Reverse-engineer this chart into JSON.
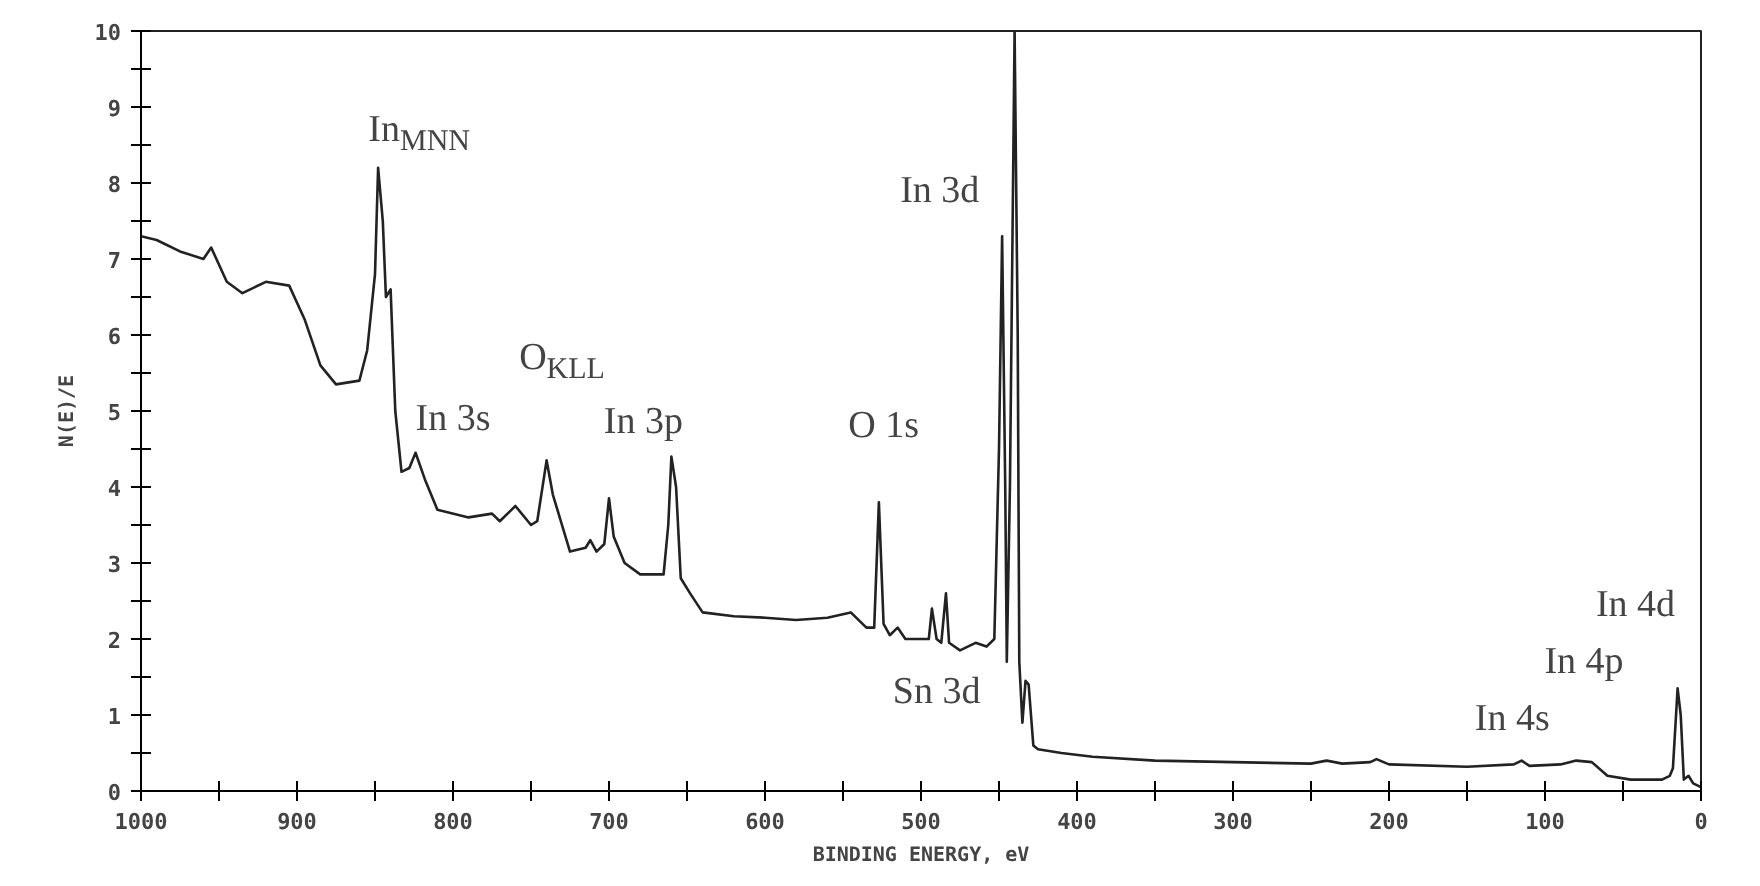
{
  "chart_data": {
    "type": "line",
    "xlabel": "BINDING ENERGY, eV",
    "ylabel": "N(E)/E",
    "xlim": [
      1000,
      0
    ],
    "ylim": [
      0,
      10
    ],
    "xticks": [
      1000,
      {
        "value": 950,
        "label": null
      },
      900,
      {
        "value": 850,
        "label": null
      },
      800,
      {
        "value": 750,
        "label": null
      },
      700,
      {
        "value": 650,
        "label": null
      },
      600,
      {
        "value": 550,
        "label": null
      },
      500,
      {
        "value": 450,
        "label": null
      },
      400,
      {
        "value": 350,
        "label": null
      },
      300,
      {
        "value": 250,
        "label": null
      },
      200,
      {
        "value": 150,
        "label": null
      },
      100,
      {
        "value": 50,
        "label": null
      },
      0
    ],
    "yticks": [
      0,
      {
        "value": 0.5,
        "label": null
      },
      1,
      {
        "value": 1.5,
        "label": null
      },
      2,
      {
        "value": 2.5,
        "label": null
      },
      3,
      {
        "value": 3.5,
        "label": null
      },
      4,
      {
        "value": 4.5,
        "label": null
      },
      5,
      {
        "value": 5.5,
        "label": null
      },
      6,
      {
        "value": 6.5,
        "label": null
      },
      7,
      {
        "value": 7.5,
        "label": null
      },
      8,
      {
        "value": 8.5,
        "label": null
      },
      9,
      {
        "value": 9.5,
        "label": null
      },
      10
    ],
    "grid": false,
    "marker": "none",
    "line_style": "solid",
    "series": [
      {
        "color": "#222222",
        "x": [
          1000,
          990,
          975,
          960,
          955,
          945,
          935,
          920,
          905,
          895,
          885,
          875,
          860,
          855,
          850,
          848,
          845,
          843,
          840,
          837,
          833,
          828,
          824,
          818,
          810,
          790,
          775,
          770,
          760,
          750,
          746,
          740,
          736,
          725,
          715,
          712,
          708,
          703,
          700,
          697,
          690,
          680,
          665,
          662,
          660,
          657,
          654,
          648,
          640,
          620,
          600,
          580,
          560,
          545,
          535,
          530,
          527,
          524,
          520,
          515,
          510,
          495,
          493,
          490,
          487,
          484,
          482,
          475,
          465,
          458,
          453,
          450,
          448,
          446,
          445,
          443,
          440,
          438,
          437,
          435,
          433,
          431,
          428,
          425,
          410,
          390,
          350,
          300,
          250,
          240,
          230,
          212,
          208,
          200,
          150,
          120,
          115,
          110,
          90,
          80,
          70,
          60,
          45,
          25,
          20,
          18,
          16,
          15,
          13,
          11,
          8,
          5,
          0
        ],
        "values": [
          7.3,
          7.25,
          7.1,
          7.0,
          7.15,
          6.7,
          6.55,
          6.7,
          6.65,
          6.2,
          5.6,
          5.35,
          5.4,
          5.8,
          6.8,
          8.2,
          7.5,
          6.5,
          6.6,
          5.0,
          4.2,
          4.25,
          4.45,
          4.1,
          3.7,
          3.6,
          3.65,
          3.55,
          3.75,
          3.5,
          3.55,
          4.35,
          3.9,
          3.15,
          3.2,
          3.3,
          3.15,
          3.25,
          3.85,
          3.35,
          3.0,
          2.85,
          2.85,
          3.5,
          4.4,
          4.0,
          2.8,
          2.6,
          2.35,
          2.3,
          2.28,
          2.25,
          2.28,
          2.35,
          2.15,
          2.15,
          3.8,
          2.2,
          2.05,
          2.15,
          2.0,
          2.0,
          2.4,
          2.0,
          1.95,
          2.6,
          1.95,
          1.85,
          1.95,
          1.9,
          2.0,
          4.5,
          7.3,
          4.0,
          1.7,
          4.0,
          10.0,
          6.0,
          1.7,
          0.9,
          1.45,
          1.4,
          0.6,
          0.55,
          0.5,
          0.45,
          0.4,
          0.38,
          0.36,
          0.4,
          0.36,
          0.38,
          0.42,
          0.35,
          0.32,
          0.35,
          0.4,
          0.33,
          0.35,
          0.4,
          0.38,
          0.2,
          0.15,
          0.15,
          0.2,
          0.3,
          1.0,
          1.35,
          1.0,
          0.15,
          0.2,
          0.1,
          0.05
        ]
      }
    ],
    "annotations": [
      "In$_{MNN}$",
      "In 3s",
      "O$_{KLL}$",
      "In 3p",
      "O 1s",
      "In 3d",
      "Sn 3d",
      "In 4s",
      "In 4p",
      "In 4d"
    ]
  }
}
